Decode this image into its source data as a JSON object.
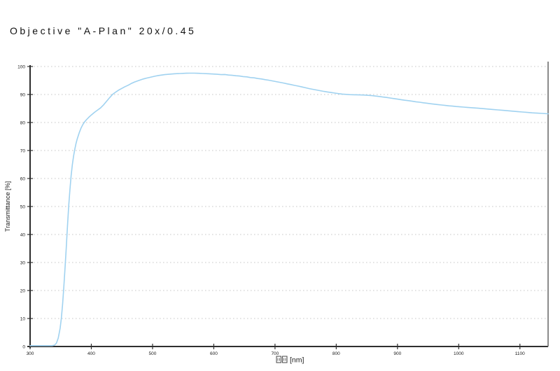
{
  "title": "Objective \"A-Plan\" 20x/0.45",
  "colors": {
    "background": "#ffffff",
    "curve": "#a0d2f0",
    "grid": "#c4c4c4",
    "axis": "#2e2e2e",
    "right_border": "#6e6e6e",
    "text": "#1a1a1a"
  },
  "chart_data": {
    "type": "line",
    "title": "Objective \"A-Plan\" 20x/0.45",
    "xlabel": "□□ [nm]",
    "xlabel_text": "[nm]",
    "xlabel_missing_glyph_boxes": 2,
    "ylabel": "Transmittance [%]",
    "xlim": [
      300,
      1146
    ],
    "ylim": [
      0,
      100
    ],
    "x_ticks": [
      300,
      400,
      500,
      600,
      700,
      800,
      900,
      1000,
      1100
    ],
    "y_ticks": [
      0,
      10,
      20,
      30,
      40,
      50,
      60,
      70,
      80,
      90,
      100
    ],
    "grid": "horizontal dotted only",
    "legend": "none",
    "series": [
      {
        "name": "transmittance",
        "color": "#a0d2f0",
        "points": [
          [
            300,
            0.3
          ],
          [
            310,
            0.3
          ],
          [
            320,
            0.3
          ],
          [
            330,
            0.3
          ],
          [
            336,
            0.3
          ],
          [
            340,
            0.5
          ],
          [
            343,
            1.2
          ],
          [
            346,
            3
          ],
          [
            349,
            6.5
          ],
          [
            351,
            10
          ],
          [
            353,
            15
          ],
          [
            355,
            21
          ],
          [
            357,
            28
          ],
          [
            359,
            35
          ],
          [
            361,
            43
          ],
          [
            363,
            50
          ],
          [
            365,
            56
          ],
          [
            367,
            61
          ],
          [
            369,
            65
          ],
          [
            371,
            68
          ],
          [
            373,
            70.5
          ],
          [
            375,
            72.5
          ],
          [
            377,
            74.2
          ],
          [
            380,
            76.2
          ],
          [
            383,
            77.9
          ],
          [
            386,
            79.2
          ],
          [
            389,
            80.2
          ],
          [
            392,
            81
          ],
          [
            396,
            81.9
          ],
          [
            400,
            82.7
          ],
          [
            405,
            83.6
          ],
          [
            410,
            84.4
          ],
          [
            415,
            85.2
          ],
          [
            420,
            86.3
          ],
          [
            425,
            87.6
          ],
          [
            430,
            88.9
          ],
          [
            435,
            90.1
          ],
          [
            440,
            90.9
          ],
          [
            445,
            91.6
          ],
          [
            450,
            92.2
          ],
          [
            455,
            92.8
          ],
          [
            460,
            93.3
          ],
          [
            465,
            93.9
          ],
          [
            470,
            94.4
          ],
          [
            475,
            94.8
          ],
          [
            480,
            95.2
          ],
          [
            485,
            95.55
          ],
          [
            490,
            95.85
          ],
          [
            495,
            96.1
          ],
          [
            500,
            96.35
          ],
          [
            505,
            96.6
          ],
          [
            510,
            96.8
          ],
          [
            515,
            96.95
          ],
          [
            520,
            97.1
          ],
          [
            525,
            97.2
          ],
          [
            530,
            97.3
          ],
          [
            535,
            97.4
          ],
          [
            540,
            97.45
          ],
          [
            545,
            97.5
          ],
          [
            550,
            97.55
          ],
          [
            555,
            97.6
          ],
          [
            560,
            97.62
          ],
          [
            568,
            97.62
          ],
          [
            575,
            97.58
          ],
          [
            582,
            97.5
          ],
          [
            590,
            97.42
          ],
          [
            598,
            97.32
          ],
          [
            605,
            97.22
          ],
          [
            612,
            97.1
          ],
          [
            618,
            97.15
          ],
          [
            624,
            96.95
          ],
          [
            630,
            96.85
          ],
          [
            636,
            96.7
          ],
          [
            642,
            96.6
          ],
          [
            648,
            96.4
          ],
          [
            654,
            96.3
          ],
          [
            660,
            96.05
          ],
          [
            666,
            95.95
          ],
          [
            672,
            95.7
          ],
          [
            678,
            95.55
          ],
          [
            684,
            95.3
          ],
          [
            690,
            95.1
          ],
          [
            696,
            94.85
          ],
          [
            702,
            94.6
          ],
          [
            708,
            94.35
          ],
          [
            714,
            94.1
          ],
          [
            720,
            93.8
          ],
          [
            726,
            93.55
          ],
          [
            732,
            93.25
          ],
          [
            738,
            93
          ],
          [
            744,
            92.7
          ],
          [
            750,
            92.4
          ],
          [
            756,
            92.1
          ],
          [
            762,
            91.85
          ],
          [
            768,
            91.6
          ],
          [
            774,
            91.35
          ],
          [
            780,
            91.1
          ],
          [
            786,
            90.9
          ],
          [
            792,
            90.7
          ],
          [
            798,
            90.5
          ],
          [
            804,
            90.3
          ],
          [
            810,
            90.15
          ],
          [
            816,
            90.05
          ],
          [
            822,
            89.95
          ],
          [
            830,
            89.9
          ],
          [
            838,
            89.85
          ],
          [
            846,
            89.8
          ],
          [
            852,
            89.7
          ],
          [
            858,
            89.6
          ],
          [
            864,
            89.45
          ],
          [
            870,
            89.3
          ],
          [
            876,
            89.1
          ],
          [
            882,
            88.95
          ],
          [
            888,
            88.75
          ],
          [
            894,
            88.55
          ],
          [
            900,
            88.35
          ],
          [
            906,
            88.15
          ],
          [
            912,
            87.95
          ],
          [
            918,
            87.8
          ],
          [
            924,
            87.6
          ],
          [
            930,
            87.4
          ],
          [
            936,
            87.25
          ],
          [
            942,
            87.05
          ],
          [
            948,
            86.9
          ],
          [
            954,
            86.7
          ],
          [
            960,
            86.55
          ],
          [
            966,
            86.4
          ],
          [
            972,
            86.25
          ],
          [
            978,
            86.1
          ],
          [
            984,
            85.95
          ],
          [
            990,
            85.85
          ],
          [
            996,
            85.7
          ],
          [
            1002,
            85.6
          ],
          [
            1008,
            85.5
          ],
          [
            1014,
            85.4
          ],
          [
            1020,
            85.3
          ],
          [
            1026,
            85.2
          ],
          [
            1032,
            85.1
          ],
          [
            1040,
            84.95
          ],
          [
            1048,
            84.8
          ],
          [
            1056,
            84.65
          ],
          [
            1064,
            84.5
          ],
          [
            1072,
            84.35
          ],
          [
            1080,
            84.2
          ],
          [
            1088,
            84.05
          ],
          [
            1096,
            83.9
          ],
          [
            1104,
            83.75
          ],
          [
            1112,
            83.6
          ],
          [
            1120,
            83.45
          ],
          [
            1128,
            83.35
          ],
          [
            1136,
            83.25
          ],
          [
            1146,
            83.1
          ]
        ]
      }
    ]
  }
}
